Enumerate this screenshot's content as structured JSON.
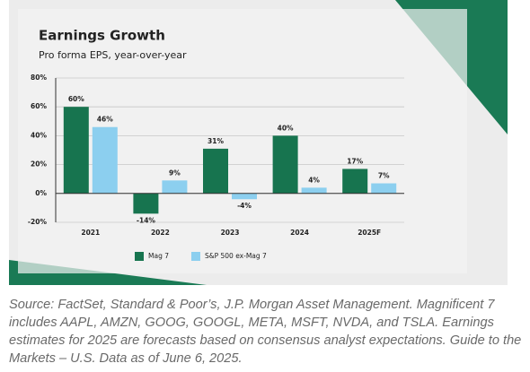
{
  "chart_data": {
    "type": "bar",
    "title": "Earnings Growth",
    "subtitle": "Pro forma EPS, year-over-year",
    "categories": [
      "2021",
      "2022",
      "2023",
      "2024",
      "2025F"
    ],
    "series": [
      {
        "name": "Mag 7",
        "color": "#17744f",
        "values": [
          60,
          -14,
          31,
          40,
          17
        ],
        "value_labels": [
          "60%",
          "-14%",
          "31%",
          "40%",
          "17%"
        ]
      },
      {
        "name": "S&P 500 ex-Mag 7",
        "color": "#8ccfef",
        "values": [
          46,
          9,
          -4,
          4,
          7
        ],
        "value_labels": [
          "46%",
          "9%",
          "-4%",
          "4%",
          "7%"
        ]
      }
    ],
    "ylim": [
      -20,
      80
    ],
    "yticks": [
      {
        "value": -20,
        "label": "-20%"
      },
      {
        "value": 0,
        "label": "0%"
      },
      {
        "value": 20,
        "label": "20%"
      },
      {
        "value": 40,
        "label": "40%"
      },
      {
        "value": 60,
        "label": "60%"
      },
      {
        "value": 80,
        "label": "80%"
      }
    ],
    "grid": true,
    "legend": "bottom"
  },
  "caption": "Source: FactSet, Standard & Poor’s, J.P. Morgan Asset Management. Magnificent 7 includes AAPL, AMZN, GOOG, GOOGL, META, MSFT, NVDA, and TSLA. Earnings estimates for 2025 are forecasts based on consensus analyst expectations. Guide to the Markets – U.S. Data as of June 6, 2025."
}
